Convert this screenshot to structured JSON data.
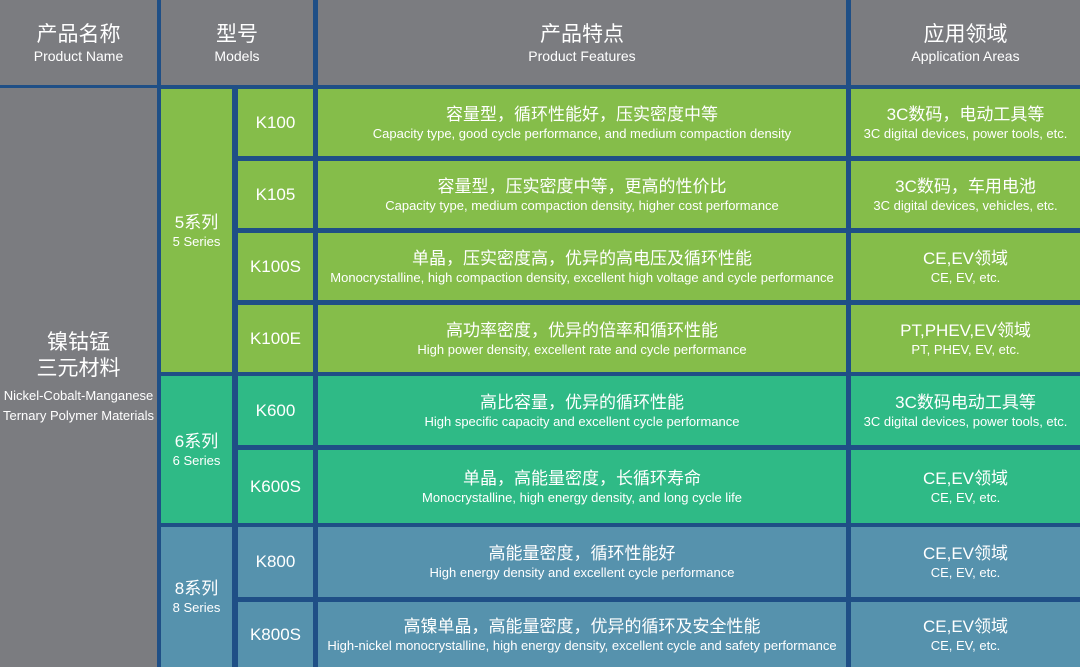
{
  "header": [
    {
      "zh": "产品名称",
      "en": "Product Name"
    },
    {
      "zh": "型号",
      "en": "Models"
    },
    {
      "zh": "产品特点",
      "en": "Product Features"
    },
    {
      "zh": "应用领域",
      "en": "Application Areas"
    }
  ],
  "product": {
    "zh1": "镍钴锰",
    "zh2": "三元材料",
    "en1": "Nickel-Cobalt-Manganese",
    "en2": "Ternary Polymer Materials"
  },
  "series": [
    {
      "zh": "5系列",
      "en": "5 Series",
      "color": "#85bd4a"
    },
    {
      "zh": "6系列",
      "en": "6 Series",
      "color": "#2fba86"
    },
    {
      "zh": "8系列",
      "en": "8 Series",
      "color": "#5692ad"
    }
  ],
  "rows": [
    {
      "model": "K100",
      "f_zh": "容量型，循环性能好，压实密度中等",
      "f_en": "Capacity type, good cycle performance, and medium compaction density",
      "a_zh": "3C数码，电动工具等",
      "a_en": "3C digital devices, power tools, etc."
    },
    {
      "model": "K105",
      "f_zh": "容量型，压实密度中等，更高的性价比",
      "f_en": "Capacity type, medium compaction density, higher cost performance",
      "a_zh": "3C数码，车用电池",
      "a_en": "3C digital devices, vehicles, etc."
    },
    {
      "model": "K100S",
      "f_zh": "单晶，压实密度高，优异的高电压及循环性能",
      "f_en": "Monocrystalline, high compaction density, excellent high voltage and cycle performance",
      "a_zh": "CE,EV领域",
      "a_en": "CE, EV, etc."
    },
    {
      "model": "K100E",
      "f_zh": "高功率密度，优异的倍率和循环性能",
      "f_en": "High power density, excellent rate and cycle performance",
      "a_zh": "PT,PHEV,EV领域",
      "a_en": "PT, PHEV, EV, etc."
    },
    {
      "model": "K600",
      "f_zh": "高比容量，优异的循环性能",
      "f_en": "High specific capacity and excellent cycle performance",
      "a_zh": "3C数码电动工具等",
      "a_en": "3C digital devices, power tools, etc."
    },
    {
      "model": "K600S",
      "f_zh": "单晶，高能量密度，长循环寿命",
      "f_en": "Monocrystalline, high energy density, and long cycle life",
      "a_zh": "CE,EV领域",
      "a_en": "CE, EV, etc."
    },
    {
      "model": "K800",
      "f_zh": "高能量密度，循环性能好",
      "f_en": "High energy density and excellent cycle performance",
      "a_zh": "CE,EV领域",
      "a_en": "CE, EV, etc."
    },
    {
      "model": "K800S",
      "f_zh": "高镍单晶，高能量密度，优异的循环及安全性能",
      "f_en": "High-nickel monocrystalline, high energy density, excellent cycle and safety performance",
      "a_zh": "CE,EV领域",
      "a_en": "CE, EV, etc."
    }
  ]
}
